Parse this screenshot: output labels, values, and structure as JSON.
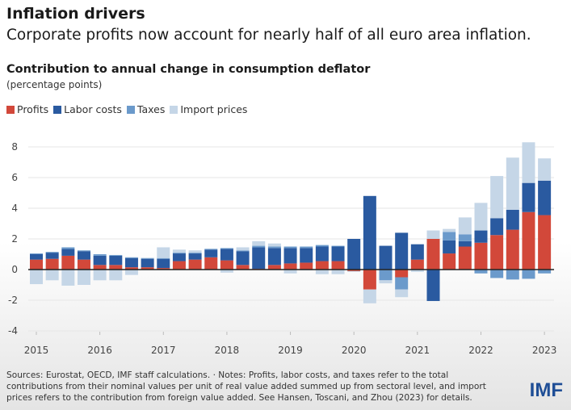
{
  "header": {
    "title": "Inflation drivers",
    "subtitle": "Corporate profits now account for nearly half of all euro area inflation."
  },
  "chart_data": {
    "type": "bar",
    "stacked": true,
    "title": "Contribution to annual change in consumption deflator",
    "ylabel": "(percentage points)",
    "ylim": [
      -4,
      8.4
    ],
    "yticks": [
      -4,
      -2,
      0,
      2,
      4,
      6,
      8
    ],
    "xtick_labels": [
      "2015",
      "2016",
      "2017",
      "2018",
      "2019",
      "2020",
      "2021",
      "2022",
      "2023"
    ],
    "categories": [
      "2015Q1",
      "2015Q2",
      "2015Q3",
      "2015Q4",
      "2016Q1",
      "2016Q2",
      "2016Q3",
      "2016Q4",
      "2017Q1",
      "2017Q2",
      "2017Q3",
      "2017Q4",
      "2018Q1",
      "2018Q2",
      "2018Q3",
      "2018Q4",
      "2019Q1",
      "2019Q2",
      "2019Q3",
      "2019Q4",
      "2020Q1",
      "2020Q2",
      "2020Q3",
      "2020Q4",
      "2021Q1",
      "2021Q2",
      "2021Q3",
      "2021Q4",
      "2022Q1",
      "2022Q2",
      "2022Q3",
      "2022Q4",
      "2023Q1"
    ],
    "legend_position": "top-left",
    "series": [
      {
        "name": "Profits",
        "color": "#d2483a",
        "values": [
          0.65,
          0.7,
          0.9,
          0.65,
          0.3,
          0.3,
          0.15,
          0.15,
          0.1,
          0.55,
          0.65,
          0.8,
          0.6,
          0.3,
          0.05,
          0.3,
          0.4,
          0.45,
          0.55,
          0.55,
          -0.1,
          -1.3,
          0,
          -0.5,
          0.65,
          2.0,
          1.05,
          1.5,
          1.75,
          2.25,
          2.6,
          3.75,
          3.55
        ]
      },
      {
        "name": "Labor costs",
        "color": "#2a5aa0",
        "values": [
          0.35,
          0.4,
          0.45,
          0.55,
          0.6,
          0.6,
          0.6,
          0.55,
          0.6,
          0.5,
          0.4,
          0.5,
          0.75,
          0.9,
          1.4,
          1.1,
          1.0,
          0.95,
          0.95,
          0.95,
          2.0,
          4.8,
          1.55,
          2.4,
          1.0,
          -2.05,
          0.85,
          0.35,
          0.8,
          1.1,
          1.3,
          1.9,
          2.25
        ]
      },
      {
        "name": "Taxes",
        "color": "#6b9acb",
        "values": [
          0.05,
          0.05,
          0.1,
          0.05,
          0.1,
          0.05,
          0.05,
          0.05,
          0.05,
          0.05,
          0.05,
          0.05,
          0.05,
          0.05,
          0.1,
          0.1,
          0.1,
          0.1,
          0.1,
          0.05,
          0,
          0,
          -0.7,
          -0.8,
          0,
          0,
          0.55,
          0.45,
          -0.25,
          -0.55,
          -0.65,
          -0.6,
          -0.25
        ]
      },
      {
        "name": "Import prices",
        "color": "#c5d6e7",
        "values": [
          -0.95,
          -0.7,
          -1.05,
          -1.0,
          -0.7,
          -0.7,
          -0.35,
          0,
          0.7,
          0.2,
          0.15,
          0,
          -0.2,
          0.2,
          0.3,
          0.2,
          -0.25,
          -0.05,
          -0.3,
          -0.3,
          -0.05,
          -0.9,
          -0.2,
          -0.5,
          -0.15,
          0.55,
          0.2,
          1.1,
          1.8,
          2.75,
          3.4,
          2.65,
          1.45
        ]
      }
    ]
  },
  "footer": {
    "notes": "Sources: Eurostat, OECD, IMF staff calculations. · Notes: Profits, labor costs, and taxes refer to the total contributions from their nominal values per unit of real value added summed up from sectoral level, and import prices refers to the contribution from foreign value added. See Hansen, Toscani, and Zhou (2023) for details.",
    "logo": "IMF"
  }
}
